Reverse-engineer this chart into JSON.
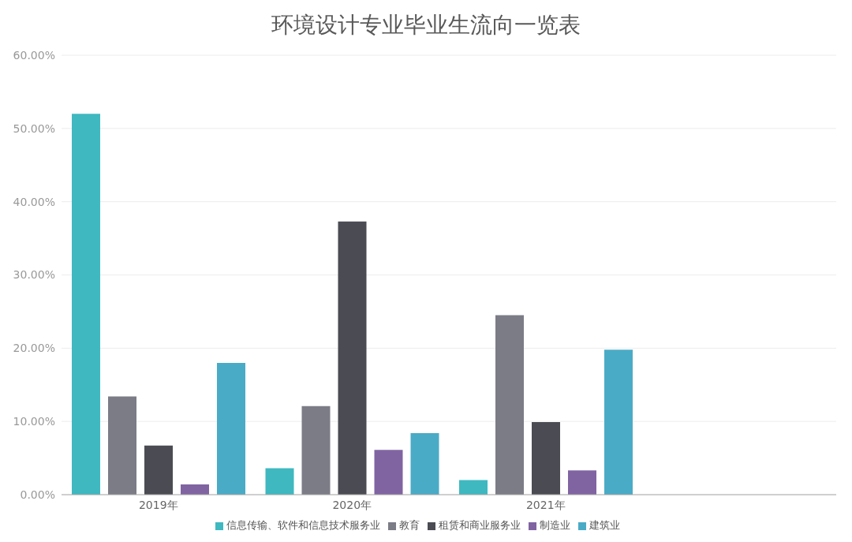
{
  "chart_data": {
    "type": "bar",
    "title": "环境设计专业毕业生流向一览表",
    "categories": [
      "2019年",
      "2020年",
      "2021年",
      null
    ],
    "series": [
      {
        "name": "信息传输、软件和信息技术服务业",
        "color": "#3fb8c0",
        "values": [
          52.0,
          3.6,
          2.0,
          null
        ]
      },
      {
        "name": "教育",
        "color": "#7b7c86",
        "values": [
          13.4,
          12.1,
          24.5,
          null
        ]
      },
      {
        "name": "租赁和商业服务业",
        "color": "#4a4b53",
        "values": [
          6.7,
          37.3,
          9.9,
          null
        ]
      },
      {
        "name": "制造业",
        "color": "#8064a2",
        "values": [
          1.4,
          6.1,
          3.3,
          null
        ]
      },
      {
        "name": "建筑业",
        "color": "#4aabc6",
        "values": [
          18.0,
          8.4,
          19.8,
          null
        ]
      }
    ],
    "ylim": [
      0,
      60
    ],
    "yticks": [
      {
        "value": 0,
        "label": "0.00%"
      },
      {
        "value": 10,
        "label": "10.00%"
      },
      {
        "value": 20,
        "label": "20.00%"
      },
      {
        "value": 30,
        "label": "30.00%"
      },
      {
        "value": 40,
        "label": "40.00%"
      },
      {
        "value": 50,
        "label": "50.00%"
      },
      {
        "value": 60,
        "label": "60.00%"
      }
    ],
    "grid": "y",
    "legend": "bottom"
  }
}
